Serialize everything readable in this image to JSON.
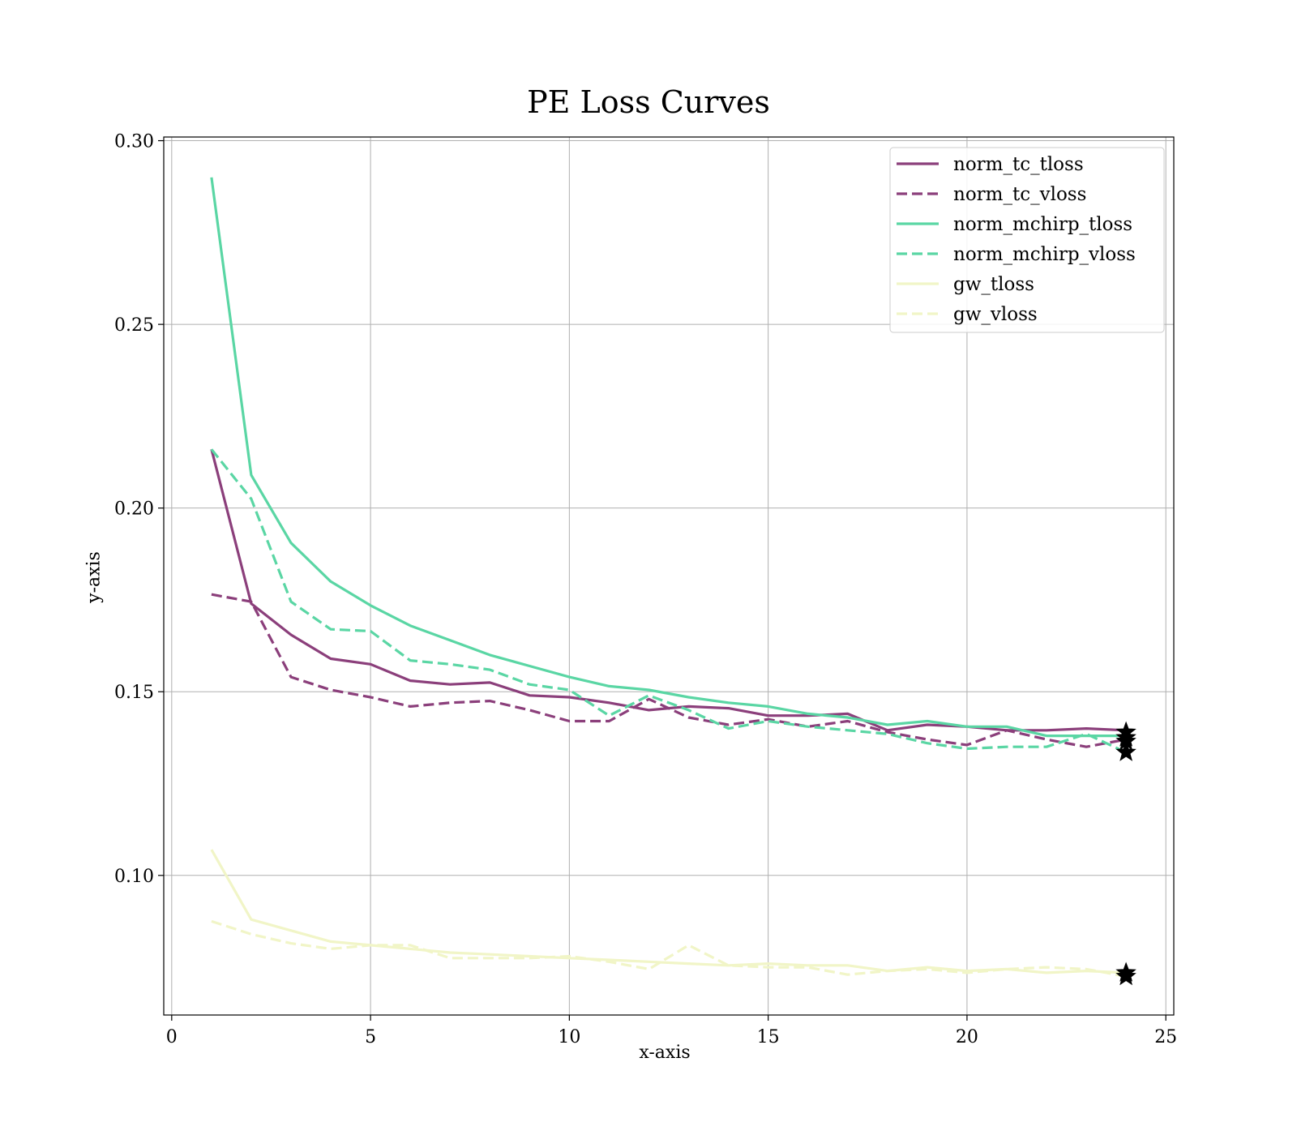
{
  "chart_data": {
    "type": "line",
    "title": "PE Loss Curves",
    "xlabel": "x-axis",
    "ylabel": "y-axis",
    "xlim": [
      -0.2,
      25.2
    ],
    "ylim": [
      0.062,
      0.301
    ],
    "xticks": [
      0,
      5,
      10,
      15,
      20,
      25
    ],
    "yticks": [
      0.1,
      0.15,
      0.2,
      0.25,
      0.3
    ],
    "xtick_labels": [
      "0",
      "5",
      "10",
      "15",
      "20",
      "25"
    ],
    "ytick_labels": [
      "0.10",
      "0.15",
      "0.20",
      "0.25",
      "0.30"
    ],
    "grid": true,
    "legend_position": "top-right",
    "x": [
      1,
      2,
      3,
      4,
      5,
      6,
      7,
      8,
      9,
      10,
      11,
      12,
      13,
      14,
      15,
      16,
      17,
      18,
      19,
      20,
      21,
      22,
      23,
      24
    ],
    "series": [
      {
        "name": "norm_tc_tloss",
        "color": "#8b3f7b",
        "dash": "solid",
        "values": [
          0.216,
          0.174,
          0.1655,
          0.159,
          0.1575,
          0.153,
          0.152,
          0.1525,
          0.149,
          0.1485,
          0.147,
          0.145,
          0.146,
          0.1455,
          0.1435,
          0.1435,
          0.144,
          0.1395,
          0.141,
          0.1405,
          0.1395,
          0.1395,
          0.14,
          0.1395
        ],
        "marker": "star",
        "marker_value": 0.139
      },
      {
        "name": "norm_tc_vloss",
        "color": "#8b3f7b",
        "dash": "dashed",
        "values": [
          0.1765,
          0.1745,
          0.154,
          0.1505,
          0.1485,
          0.146,
          0.147,
          0.1475,
          0.145,
          0.142,
          0.142,
          0.148,
          0.143,
          0.141,
          0.1425,
          0.1405,
          0.142,
          0.139,
          0.137,
          0.1355,
          0.1395,
          0.137,
          0.135,
          0.137
        ],
        "marker": "star",
        "marker_value": 0.1365
      },
      {
        "name": "norm_mchirp_tloss",
        "color": "#5ad6a4",
        "dash": "solid",
        "values": [
          0.29,
          0.209,
          0.1905,
          0.18,
          0.1735,
          0.168,
          0.164,
          0.16,
          0.157,
          0.154,
          0.1515,
          0.1505,
          0.1485,
          0.147,
          0.146,
          0.144,
          0.143,
          0.141,
          0.142,
          0.1405,
          0.1405,
          0.138,
          0.138,
          0.138
        ],
        "marker": "star",
        "marker_value": 0.1375
      },
      {
        "name": "norm_mchirp_vloss",
        "color": "#5ad6a4",
        "dash": "dashed",
        "values": [
          0.216,
          0.2025,
          0.1745,
          0.167,
          0.1665,
          0.1585,
          0.1575,
          0.156,
          0.152,
          0.1505,
          0.1435,
          0.149,
          0.145,
          0.14,
          0.142,
          0.1405,
          0.1395,
          0.1385,
          0.136,
          0.1345,
          0.135,
          0.135,
          0.1385,
          0.1335
        ],
        "marker": "star",
        "marker_value": 0.1335
      },
      {
        "name": "gw_tloss",
        "color": "#f1f5c7",
        "dash": "solid",
        "values": [
          0.107,
          0.088,
          0.085,
          0.082,
          0.081,
          0.08,
          0.079,
          0.0785,
          0.078,
          0.0775,
          0.077,
          0.0765,
          0.076,
          0.0755,
          0.076,
          0.0755,
          0.0755,
          0.074,
          0.075,
          0.074,
          0.0745,
          0.0735,
          0.074,
          0.0735
        ],
        "marker": "star",
        "marker_value": 0.0735
      },
      {
        "name": "gw_vloss",
        "color": "#f1f5c7",
        "dash": "dashed",
        "values": [
          0.0875,
          0.084,
          0.0815,
          0.08,
          0.081,
          0.081,
          0.0775,
          0.0775,
          0.0775,
          0.078,
          0.0765,
          0.0745,
          0.081,
          0.0755,
          0.075,
          0.075,
          0.073,
          0.074,
          0.0745,
          0.0735,
          0.0745,
          0.075,
          0.0745,
          0.0725
        ],
        "marker": "star",
        "marker_value": 0.0725
      }
    ]
  }
}
